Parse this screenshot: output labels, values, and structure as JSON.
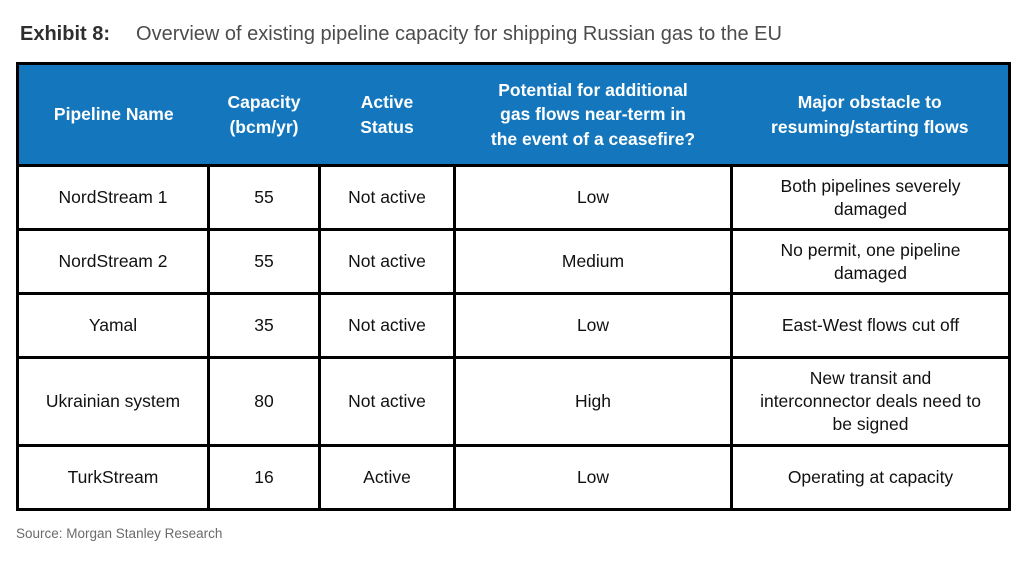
{
  "title": {
    "label": "Exhibit 8:",
    "text": "Overview of existing pipeline capacity for shipping Russian gas to the EU"
  },
  "table": {
    "columns": [
      "Pipeline Name",
      "Capacity\n(bcm/yr)",
      "Active\nStatus",
      "Potential for additional\ngas flows near-term in\nthe event of a ceasefire?",
      "Major obstacle to\nresuming/starting flows"
    ],
    "rows": [
      [
        "NordStream 1",
        "55",
        "Not active",
        "Low",
        "Both pipelines severely damaged"
      ],
      [
        "NordStream 2",
        "55",
        "Not active",
        "Medium",
        "No permit, one pipeline damaged"
      ],
      [
        "Yamal",
        "35",
        "Not active",
        "Low",
        "East-West flows cut off"
      ],
      [
        "Ukrainian system",
        "80",
        "Not active",
        "High",
        "New transit and interconnector deals need to be signed"
      ],
      [
        "TurkStream",
        "16",
        "Active",
        "Low",
        "Operating at capacity"
      ]
    ]
  },
  "source": "Source: Morgan Stanley Research",
  "colors": {
    "header_bg": "#1477BD",
    "header_text": "#FFFFFF",
    "border": "#000000",
    "title_label": "#2E2E2E",
    "title_text": "#4C4C4C",
    "source_text": "#6B6B6B"
  },
  "chart_data": {
    "type": "table",
    "title": "Overview of existing pipeline capacity for shipping Russian gas to the EU",
    "columns": [
      "Pipeline Name",
      "Capacity (bcm/yr)",
      "Active Status",
      "Potential for additional gas flows near-term in the event of a ceasefire?",
      "Major obstacle to resuming/starting flows"
    ],
    "rows": [
      [
        "NordStream 1",
        55,
        "Not active",
        "Low",
        "Both pipelines severely damaged"
      ],
      [
        "NordStream 2",
        55,
        "Not active",
        "Medium",
        "No permit, one pipeline damaged"
      ],
      [
        "Yamal",
        35,
        "Not active",
        "Low",
        "East-West flows cut off"
      ],
      [
        "Ukrainian system",
        80,
        "Not active",
        "High",
        "New transit and interconnector deals need to be signed"
      ],
      [
        "TurkStream",
        16,
        "Active",
        "Low",
        "Operating at capacity"
      ]
    ]
  }
}
